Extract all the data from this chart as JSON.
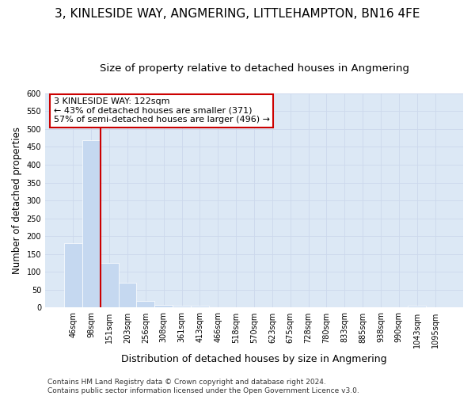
{
  "title": "3, KINLESIDE WAY, ANGMERING, LITTLEHAMPTON, BN16 4FE",
  "subtitle": "Size of property relative to detached houses in Angmering",
  "xlabel": "Distribution of detached houses by size in Angmering",
  "ylabel": "Number of detached properties",
  "categories": [
    "46sqm",
    "98sqm",
    "151sqm",
    "203sqm",
    "256sqm",
    "308sqm",
    "361sqm",
    "413sqm",
    "466sqm",
    "518sqm",
    "570sqm",
    "623sqm",
    "675sqm",
    "728sqm",
    "780sqm",
    "833sqm",
    "885sqm",
    "938sqm",
    "990sqm",
    "1043sqm",
    "1095sqm"
  ],
  "values": [
    180,
    468,
    126,
    70,
    18,
    8,
    5,
    5,
    0,
    0,
    0,
    0,
    0,
    0,
    0,
    0,
    0,
    0,
    0,
    5,
    0
  ],
  "bar_color": "#c5d8f0",
  "vline_color": "#cc0000",
  "vline_x": 1.5,
  "annotation_text": "3 KINLESIDE WAY: 122sqm\n← 43% of detached houses are smaller (371)\n57% of semi-detached houses are larger (496) →",
  "annotation_box_facecolor": "#ffffff",
  "annotation_box_edgecolor": "#cc0000",
  "ylim": [
    0,
    600
  ],
  "yticks": [
    0,
    50,
    100,
    150,
    200,
    250,
    300,
    350,
    400,
    450,
    500,
    550,
    600
  ],
  "footer": "Contains HM Land Registry data © Crown copyright and database right 2024.\nContains public sector information licensed under the Open Government Licence v3.0.",
  "grid_color": "#ccd8ec",
  "fig_bg_color": "#ffffff",
  "ax_bg_color": "#dce8f5",
  "title_fontsize": 11,
  "subtitle_fontsize": 9.5,
  "xlabel_fontsize": 9,
  "ylabel_fontsize": 8.5,
  "tick_fontsize": 7,
  "annotation_fontsize": 8,
  "footer_fontsize": 6.5
}
